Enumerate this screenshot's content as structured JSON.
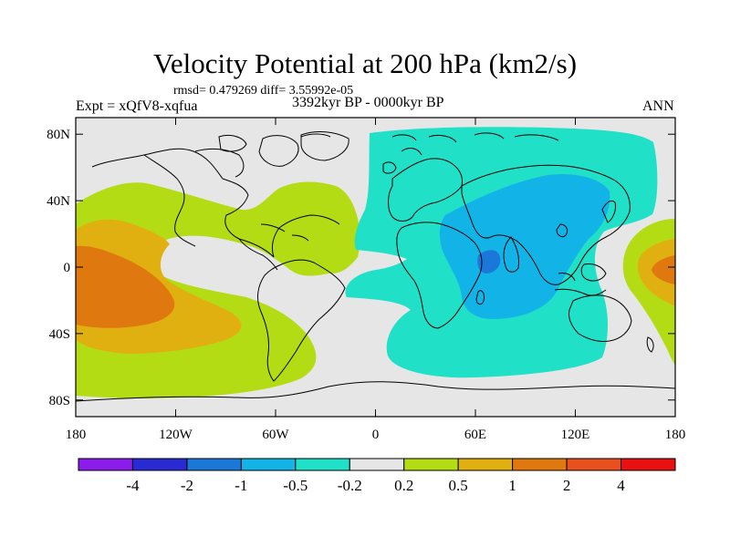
{
  "title": "Velocity Potential at 200 hPa (km2/s)",
  "stats_line": "rmsd= 0.479269 diff= 3.55992e-05",
  "experiment": "Expt = xQfV8-xqfua",
  "period": "3392kyr BP - 0000kyr BP",
  "season": "ANN",
  "map": {
    "lon_range": [
      -180,
      180
    ],
    "lat_range": [
      -90,
      90
    ],
    "x_ticks": [
      {
        "lon": -180,
        "label": "180"
      },
      {
        "lon": -120,
        "label": "120W"
      },
      {
        "lon": -60,
        "label": "60W"
      },
      {
        "lon": 0,
        "label": "0"
      },
      {
        "lon": 60,
        "label": "60E"
      },
      {
        "lon": 120,
        "label": "120E"
      },
      {
        "lon": 180,
        "label": "180"
      }
    ],
    "y_ticks": [
      {
        "lat": 80,
        "label": "80N"
      },
      {
        "lat": 40,
        "label": "40N"
      },
      {
        "lat": 0,
        "label": "0"
      },
      {
        "lat": -40,
        "label": "40S"
      },
      {
        "lat": -80,
        "label": "80S"
      }
    ]
  },
  "colorbar": {
    "colors": [
      "#8c1cec",
      "#2a2ad2",
      "#1c78d8",
      "#12b4e8",
      "#20e0c8",
      "#e6e6e6",
      "#b4dc14",
      "#e0b010",
      "#e07810",
      "#e85020",
      "#e81010"
    ],
    "labels": [
      "-4",
      "-2",
      "-1",
      "-0.5",
      "-0.2",
      "0.2",
      "0.5",
      "1",
      "2",
      "4"
    ]
  }
}
